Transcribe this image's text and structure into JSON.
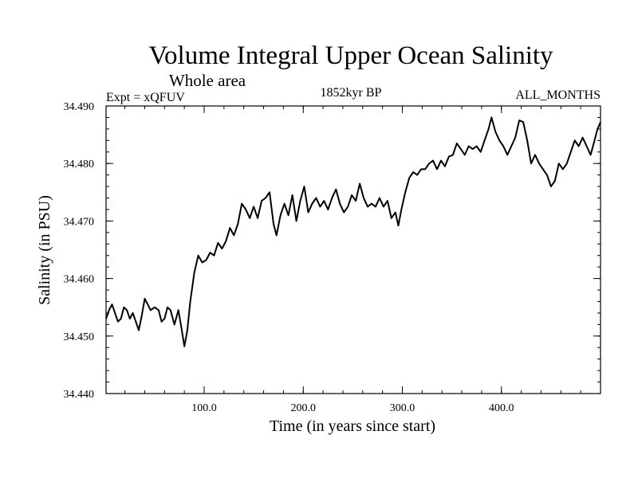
{
  "chart_data": {
    "type": "line",
    "title": "Volume Integral Upper Ocean Salinity",
    "subtitle": "Whole area",
    "left_label": "Expt = xQFUV",
    "center_label": "1852kyr BP",
    "right_label": "ALL_MONTHS",
    "xlabel": "Time (in years since start)",
    "ylabel": "Salinity (in PSU)",
    "xlim": [
      1,
      500
    ],
    "ylim": [
      34.44,
      34.49
    ],
    "x_ticks": [
      {
        "value": 100,
        "label": "100.0"
      },
      {
        "value": 200,
        "label": "200.0"
      },
      {
        "value": 300,
        "label": "300.0"
      },
      {
        "value": 400,
        "label": "400.0"
      }
    ],
    "x_minor_step": 20,
    "y_ticks": [
      {
        "value": 34.44,
        "label": "34.440"
      },
      {
        "value": 34.45,
        "label": "34.450"
      },
      {
        "value": 34.46,
        "label": "34.460"
      },
      {
        "value": 34.47,
        "label": "34.470"
      },
      {
        "value": 34.48,
        "label": "34.480"
      },
      {
        "value": 34.49,
        "label": "34.490"
      }
    ],
    "y_minor_step": 0.002,
    "grid": false,
    "series": [
      {
        "name": "Salinity",
        "color": "#000000",
        "points": [
          [
            1,
            34.453
          ],
          [
            4,
            34.4545
          ],
          [
            7,
            34.4555
          ],
          [
            10,
            34.454
          ],
          [
            13,
            34.4525
          ],
          [
            16,
            34.453
          ],
          [
            19,
            34.455
          ],
          [
            22,
            34.4545
          ],
          [
            25,
            34.453
          ],
          [
            28,
            34.454
          ],
          [
            31,
            34.4525
          ],
          [
            34,
            34.451
          ],
          [
            37,
            34.4535
          ],
          [
            40,
            34.4565
          ],
          [
            43,
            34.4555
          ],
          [
            46,
            34.4545
          ],
          [
            50,
            34.455
          ],
          [
            54,
            34.4545
          ],
          [
            57,
            34.4525
          ],
          [
            60,
            34.453
          ],
          [
            63,
            34.455
          ],
          [
            66,
            34.4545
          ],
          [
            70,
            34.452
          ],
          [
            74,
            34.4545
          ],
          [
            77,
            34.4515
          ],
          [
            80,
            34.4482
          ],
          [
            83,
            34.451
          ],
          [
            86,
            34.456
          ],
          [
            90,
            34.461
          ],
          [
            94,
            34.464
          ],
          [
            98,
            34.4628
          ],
          [
            102,
            34.4632
          ],
          [
            106,
            34.4645
          ],
          [
            110,
            34.464
          ],
          [
            114,
            34.4662
          ],
          [
            118,
            34.4652
          ],
          [
            122,
            34.4665
          ],
          [
            126,
            34.4688
          ],
          [
            130,
            34.4675
          ],
          [
            134,
            34.4695
          ],
          [
            138,
            34.473
          ],
          [
            142,
            34.472
          ],
          [
            146,
            34.4705
          ],
          [
            150,
            34.4725
          ],
          [
            154,
            34.4705
          ],
          [
            158,
            34.4735
          ],
          [
            162,
            34.474
          ],
          [
            166,
            34.475
          ],
          [
            170,
            34.4695
          ],
          [
            173,
            34.4675
          ],
          [
            177,
            34.471
          ],
          [
            181,
            34.473
          ],
          [
            185,
            34.471
          ],
          [
            189,
            34.4745
          ],
          [
            193,
            34.47
          ],
          [
            197,
            34.4735
          ],
          [
            201,
            34.476
          ],
          [
            205,
            34.4715
          ],
          [
            209,
            34.473
          ],
          [
            213,
            34.474
          ],
          [
            217,
            34.4725
          ],
          [
            221,
            34.4735
          ],
          [
            225,
            34.472
          ],
          [
            229,
            34.474
          ],
          [
            233,
            34.4755
          ],
          [
            237,
            34.473
          ],
          [
            241,
            34.4715
          ],
          [
            245,
            34.4725
          ],
          [
            249,
            34.4745
          ],
          [
            253,
            34.4735
          ],
          [
            257,
            34.4765
          ],
          [
            261,
            34.474
          ],
          [
            265,
            34.4725
          ],
          [
            269,
            34.473
          ],
          [
            273,
            34.4725
          ],
          [
            277,
            34.474
          ],
          [
            281,
            34.4725
          ],
          [
            285,
            34.4735
          ],
          [
            289,
            34.4705
          ],
          [
            293,
            34.4715
          ],
          [
            296,
            34.4692
          ],
          [
            299,
            34.472
          ],
          [
            303,
            34.475
          ],
          [
            307,
            34.4775
          ],
          [
            311,
            34.4785
          ],
          [
            315,
            34.478
          ],
          [
            319,
            34.479
          ],
          [
            323,
            34.479
          ],
          [
            327,
            34.48
          ],
          [
            331,
            34.4805
          ],
          [
            335,
            34.479
          ],
          [
            339,
            34.4805
          ],
          [
            343,
            34.4795
          ],
          [
            347,
            34.4812
          ],
          [
            351,
            34.4815
          ],
          [
            355,
            34.4835
          ],
          [
            359,
            34.4825
          ],
          [
            363,
            34.4815
          ],
          [
            367,
            34.483
          ],
          [
            371,
            34.4825
          ],
          [
            375,
            34.483
          ],
          [
            379,
            34.482
          ],
          [
            383,
            34.484
          ],
          [
            387,
            34.486
          ],
          [
            390,
            34.488
          ],
          [
            394,
            34.4855
          ],
          [
            398,
            34.484
          ],
          [
            402,
            34.483
          ],
          [
            406,
            34.4815
          ],
          [
            410,
            34.483
          ],
          [
            414,
            34.4845
          ],
          [
            418,
            34.4875
          ],
          [
            422,
            34.4872
          ],
          [
            426,
            34.484
          ],
          [
            430,
            34.48
          ],
          [
            434,
            34.4815
          ],
          [
            438,
            34.48
          ],
          [
            442,
            34.479
          ],
          [
            446,
            34.478
          ],
          [
            450,
            34.476
          ],
          [
            454,
            34.477
          ],
          [
            458,
            34.48
          ],
          [
            462,
            34.479
          ],
          [
            466,
            34.48
          ],
          [
            470,
            34.482
          ],
          [
            474,
            34.484
          ],
          [
            478,
            34.483
          ],
          [
            482,
            34.4845
          ],
          [
            486,
            34.483
          ],
          [
            490,
            34.4815
          ],
          [
            494,
            34.484
          ],
          [
            497,
            34.486
          ],
          [
            500,
            34.4872
          ]
        ]
      }
    ]
  }
}
